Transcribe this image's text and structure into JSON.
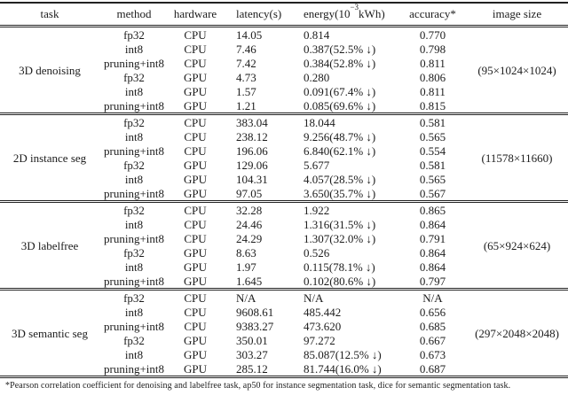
{
  "table": {
    "headers": {
      "task": "task",
      "method": "method",
      "hardware": "hardware",
      "latency": "latency(s)",
      "energy_prefix": "energy(10",
      "energy_sup": "−3",
      "energy_suffix": "kWh)",
      "accuracy": "accuracy*",
      "image_size": "image size"
    },
    "groups": [
      {
        "task": "3D denoising",
        "image_size": "(95×1024×1024)",
        "rows": [
          {
            "method": "fp32",
            "hardware": "CPU",
            "latency": "14.05",
            "energy": "0.814",
            "accuracy": "0.770"
          },
          {
            "method": "int8",
            "hardware": "CPU",
            "latency": "7.46",
            "energy": "0.387(52.5% ↓)",
            "accuracy": "0.798"
          },
          {
            "method": "pruning+int8",
            "hardware": "CPU",
            "latency": "7.42",
            "energy": "0.384(52.8% ↓)",
            "accuracy": "0.811"
          },
          {
            "method": "fp32",
            "hardware": "GPU",
            "latency": "4.73",
            "energy": "0.280",
            "accuracy": "0.806"
          },
          {
            "method": "int8",
            "hardware": "GPU",
            "latency": "1.57",
            "energy": "0.091(67.4% ↓)",
            "accuracy": "0.811"
          },
          {
            "method": "pruning+int8",
            "hardware": "GPU",
            "latency": "1.21",
            "energy": "0.085(69.6% ↓)",
            "accuracy": "0.815"
          }
        ]
      },
      {
        "task": "2D instance seg",
        "image_size": "(11578×11660)",
        "rows": [
          {
            "method": "fp32",
            "hardware": "CPU",
            "latency": "383.04",
            "energy": "18.044",
            "accuracy": "0.581"
          },
          {
            "method": "int8",
            "hardware": "CPU",
            "latency": "238.12",
            "energy": "9.256(48.7% ↓)",
            "accuracy": "0.565"
          },
          {
            "method": "pruning+int8",
            "hardware": "CPU",
            "latency": "196.06",
            "energy": "6.840(62.1% ↓)",
            "accuracy": "0.554"
          },
          {
            "method": "fp32",
            "hardware": "GPU",
            "latency": "129.06",
            "energy": "5.677",
            "accuracy": "0.581"
          },
          {
            "method": "int8",
            "hardware": "GPU",
            "latency": "104.31",
            "energy": "4.057(28.5% ↓)",
            "accuracy": "0.565"
          },
          {
            "method": "pruning+int8",
            "hardware": "GPU",
            "latency": "97.05",
            "energy": "3.650(35.7% ↓)",
            "accuracy": "0.567"
          }
        ]
      },
      {
        "task": "3D labelfree",
        "image_size": "(65×924×624)",
        "rows": [
          {
            "method": "fp32",
            "hardware": "CPU",
            "latency": "32.28",
            "energy": "1.922",
            "accuracy": "0.865"
          },
          {
            "method": "int8",
            "hardware": "CPU",
            "latency": "24.46",
            "energy": "1.316(31.5% ↓)",
            "accuracy": "0.864"
          },
          {
            "method": "pruning+int8",
            "hardware": "CPU",
            "latency": "24.29",
            "energy": "1.307(32.0% ↓)",
            "accuracy": "0.791"
          },
          {
            "method": "fp32",
            "hardware": "GPU",
            "latency": "8.63",
            "energy": "0.526",
            "accuracy": "0.864"
          },
          {
            "method": "int8",
            "hardware": "GPU",
            "latency": "1.97",
            "energy": "0.115(78.1% ↓)",
            "accuracy": "0.864"
          },
          {
            "method": "pruning+int8",
            "hardware": "GPU",
            "latency": "1.645",
            "energy": "0.102(80.6% ↓)",
            "accuracy": "0.797"
          }
        ]
      },
      {
        "task": "3D semantic seg",
        "image_size": "(297×2048×2048)",
        "rows": [
          {
            "method": "fp32",
            "hardware": "CPU",
            "latency": "N/A",
            "energy": "N/A",
            "accuracy": "N/A"
          },
          {
            "method": "int8",
            "hardware": "CPU",
            "latency": "9608.61",
            "energy": "485.442",
            "accuracy": "0.656"
          },
          {
            "method": "pruning+int8",
            "hardware": "CPU",
            "latency": "9383.27",
            "energy": "473.620",
            "accuracy": "0.685"
          },
          {
            "method": "fp32",
            "hardware": "GPU",
            "latency": "350.01",
            "energy": "97.272",
            "accuracy": "0.667"
          },
          {
            "method": "int8",
            "hardware": "GPU",
            "latency": "303.27",
            "energy": "85.087(12.5% ↓)",
            "accuracy": "0.673"
          },
          {
            "method": "pruning+int8",
            "hardware": "GPU",
            "latency": "285.12",
            "energy": "81.744(16.0% ↓)",
            "accuracy": "0.687"
          }
        ]
      }
    ],
    "footnote": "*Pearson correlation coefficient for denoising and labelfree task, ap50 for instance segmentation task, dice for semantic segmentation task."
  }
}
